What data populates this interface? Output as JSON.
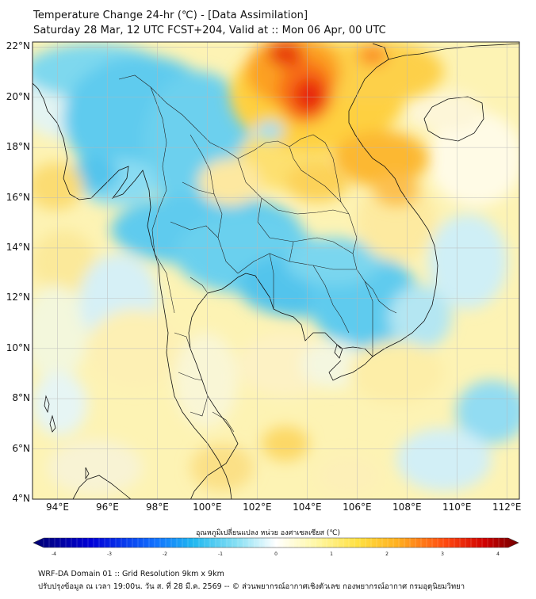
{
  "header": {
    "title": "Temperature Change 24-hr (℃) - [Data Assimilation]",
    "subtitle": "Saturday 28 Mar, 12 UTC FCST+204, Valid at :: Mon 06 Apr, 00 UTC"
  },
  "map": {
    "lat_labels": [
      "22°N",
      "20°N",
      "18°N",
      "16°N",
      "14°N",
      "12°N",
      "10°N",
      "8°N",
      "6°N",
      "4°N"
    ],
    "lon_labels": [
      "94°E",
      "96°E",
      "98°E",
      "100°E",
      "102°E",
      "104°E",
      "106°E",
      "108°E",
      "110°E",
      "112°E"
    ],
    "lat_range": [
      4,
      22.2
    ],
    "lon_range": [
      93,
      112.5
    ],
    "grid": true
  },
  "colorbar": {
    "title": "อุณหภูมิเปลี่ยนแปลง หน่วย องศาเซลเซียส (℃)",
    "ticks": [
      "-4",
      "-3",
      "-2",
      "-1",
      "0",
      "1",
      "2",
      "3",
      "4"
    ],
    "range": [
      -4,
      4
    ],
    "colors": [
      "#00007a",
      "#0000d0",
      "#1060ff",
      "#20b0f0",
      "#60d8f0",
      "#b8eef8",
      "#ffffff",
      "#fff8b0",
      "#ffe050",
      "#ffb020",
      "#ff6010",
      "#e00000",
      "#800000"
    ]
  },
  "footer": {
    "line1": "WRF-DA Domain 01 :: Grid Resolution 9km x 9km",
    "line2": "ปรับปรุงข้อมูล ณ เวลา 19:00น. วัน ส. ที่ 28 มี.ค. 2569 -- © ส่วนพยากรณ์อากาศเชิงตัวเลข กองพยากรณ์อากาศ กรมอุตุนิยมวิทยา"
  }
}
